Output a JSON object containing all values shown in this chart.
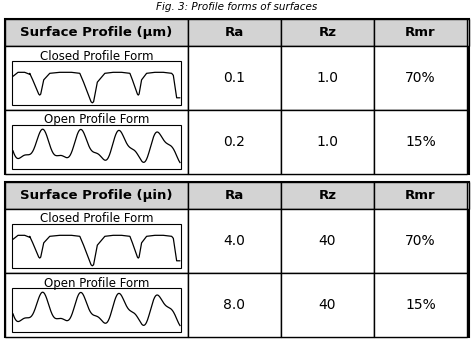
{
  "title": "Fig. 3: Profile forms of surfaces",
  "title_fontsize": 7.5,
  "title_style": "italic",
  "background_color": "#ffffff",
  "header_bg": "#d3d3d3",
  "border_color": "#000000",
  "table1_header": "Surface Profile (μm)",
  "table2_header": "Surface Profile (μin)",
  "col_headers": [
    "Ra",
    "Rz",
    "Rmr"
  ],
  "row1_labels": [
    "Closed Profile Form",
    "Open Profile Form"
  ],
  "row2_labels": [
    "Closed Profile Form",
    "Open Profile Form"
  ],
  "table1_data": [
    [
      "0.1",
      "1.0",
      "70%"
    ],
    [
      "0.2",
      "1.0",
      "15%"
    ]
  ],
  "table2_data": [
    [
      "4.0",
      "40",
      "70%"
    ],
    [
      "8.0",
      "40",
      "15%"
    ]
  ],
  "data_fontsize": 10,
  "label_fontsize": 8.5,
  "header_fontsize": 9.5
}
